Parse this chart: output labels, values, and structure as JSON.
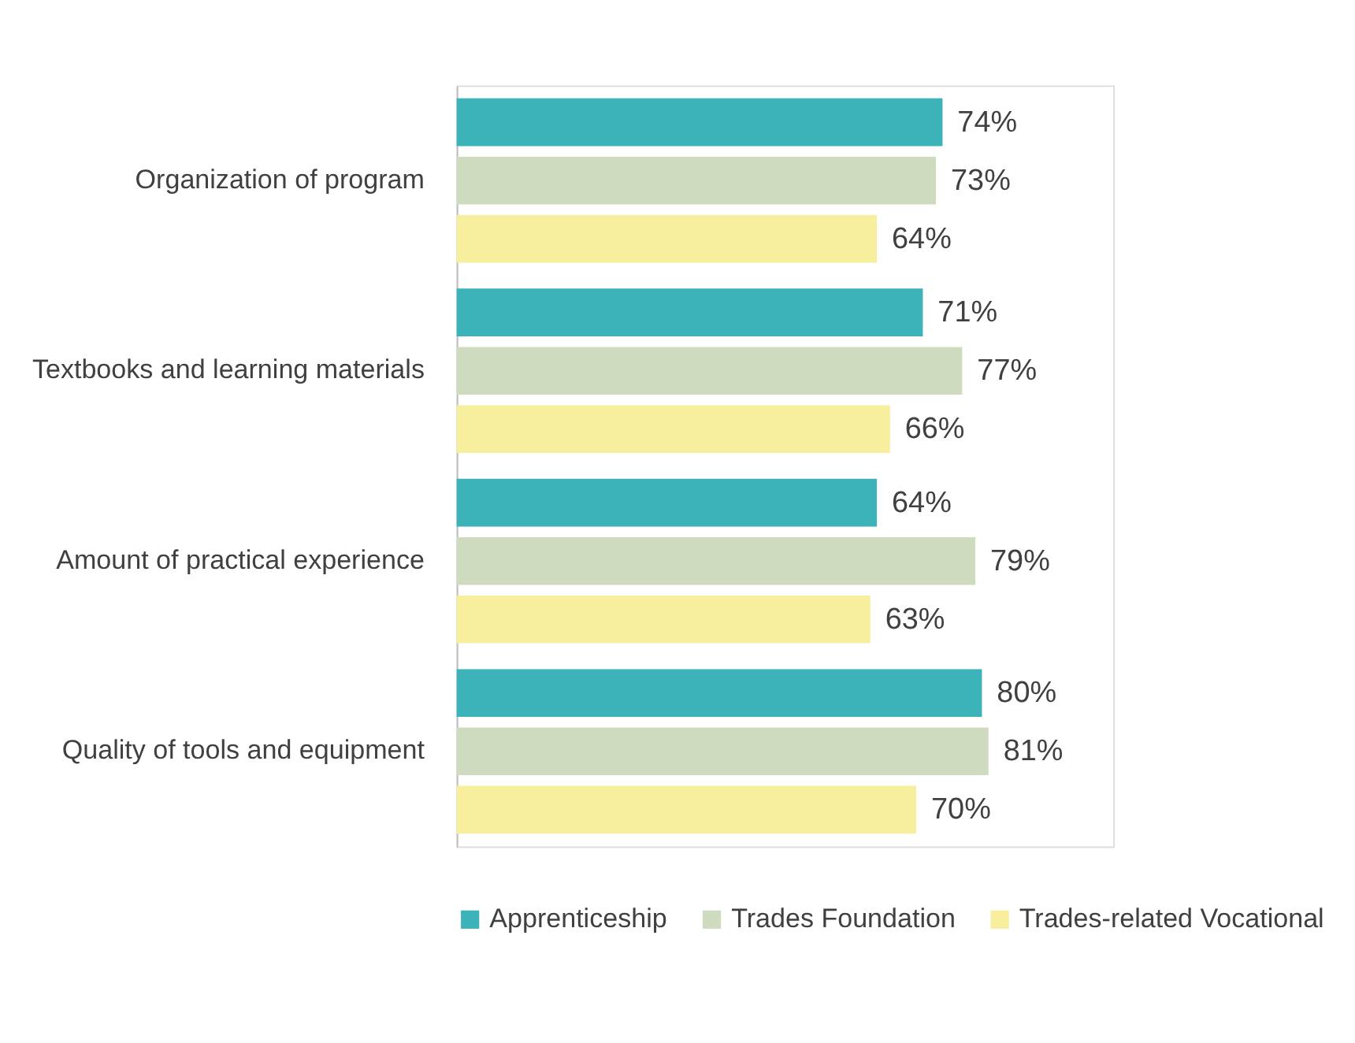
{
  "chart_data": {
    "type": "bar",
    "orientation": "horizontal",
    "categories": [
      "Organization of program",
      "Textbooks and learning materials",
      "Amount of practical experience",
      "Quality of tools and equipment"
    ],
    "series": [
      {
        "name": "Apprenticeship",
        "color": "#3bb3b8",
        "values": [
          74,
          71,
          64,
          80
        ],
        "value_labels": [
          "74%",
          "71%",
          "64%",
          "80%"
        ]
      },
      {
        "name": "Trades Foundation",
        "color": "#cfdbbf",
        "values": [
          73,
          77,
          79,
          81
        ],
        "value_labels": [
          "73%",
          "77%",
          "79%",
          "81%"
        ]
      },
      {
        "name": "Trades-related Vocational",
        "color": "#f7ee9e",
        "values": [
          64,
          66,
          63,
          70
        ],
        "value_labels": [
          "64%",
          "66%",
          "63%",
          "70%"
        ]
      }
    ],
    "xlim": [
      0,
      100
    ],
    "legend": "bottom",
    "grid": false,
    "tick_labels": "y"
  }
}
